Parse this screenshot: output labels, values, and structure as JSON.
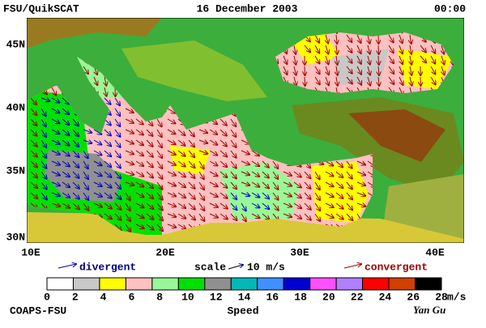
{
  "header": {
    "source": "FSU/QuikSCAT",
    "date": "16 December 2003",
    "time": "00:00"
  },
  "map": {
    "lat_labels": [
      "45N",
      "40N",
      "35N",
      "30N"
    ],
    "lon_labels": [
      "10E",
      "20E",
      "30E",
      "40E"
    ]
  },
  "legend": {
    "divergent": "divergent",
    "scale": "scale",
    "scale_value": "10 m/s",
    "convergent": "convergent"
  },
  "colorbar": {
    "ticks": [
      0,
      2,
      4,
      6,
      8,
      10,
      12,
      14,
      16,
      18,
      20,
      22,
      24,
      26,
      28
    ],
    "colors": [
      "#ffffff",
      "#c8c8c8",
      "#ffff00",
      "#ffc0c0",
      "#98f898",
      "#00e000",
      "#909090",
      "#00b8b8",
      "#4090ff",
      "#0000d0",
      "#ff50ff",
      "#b080ff",
      "#ff0000",
      "#d04000",
      "#000000"
    ],
    "unit": "m/s",
    "label": "Speed"
  },
  "footer": {
    "org": "COAPS-FSU",
    "author": "Yan Gu"
  }
}
